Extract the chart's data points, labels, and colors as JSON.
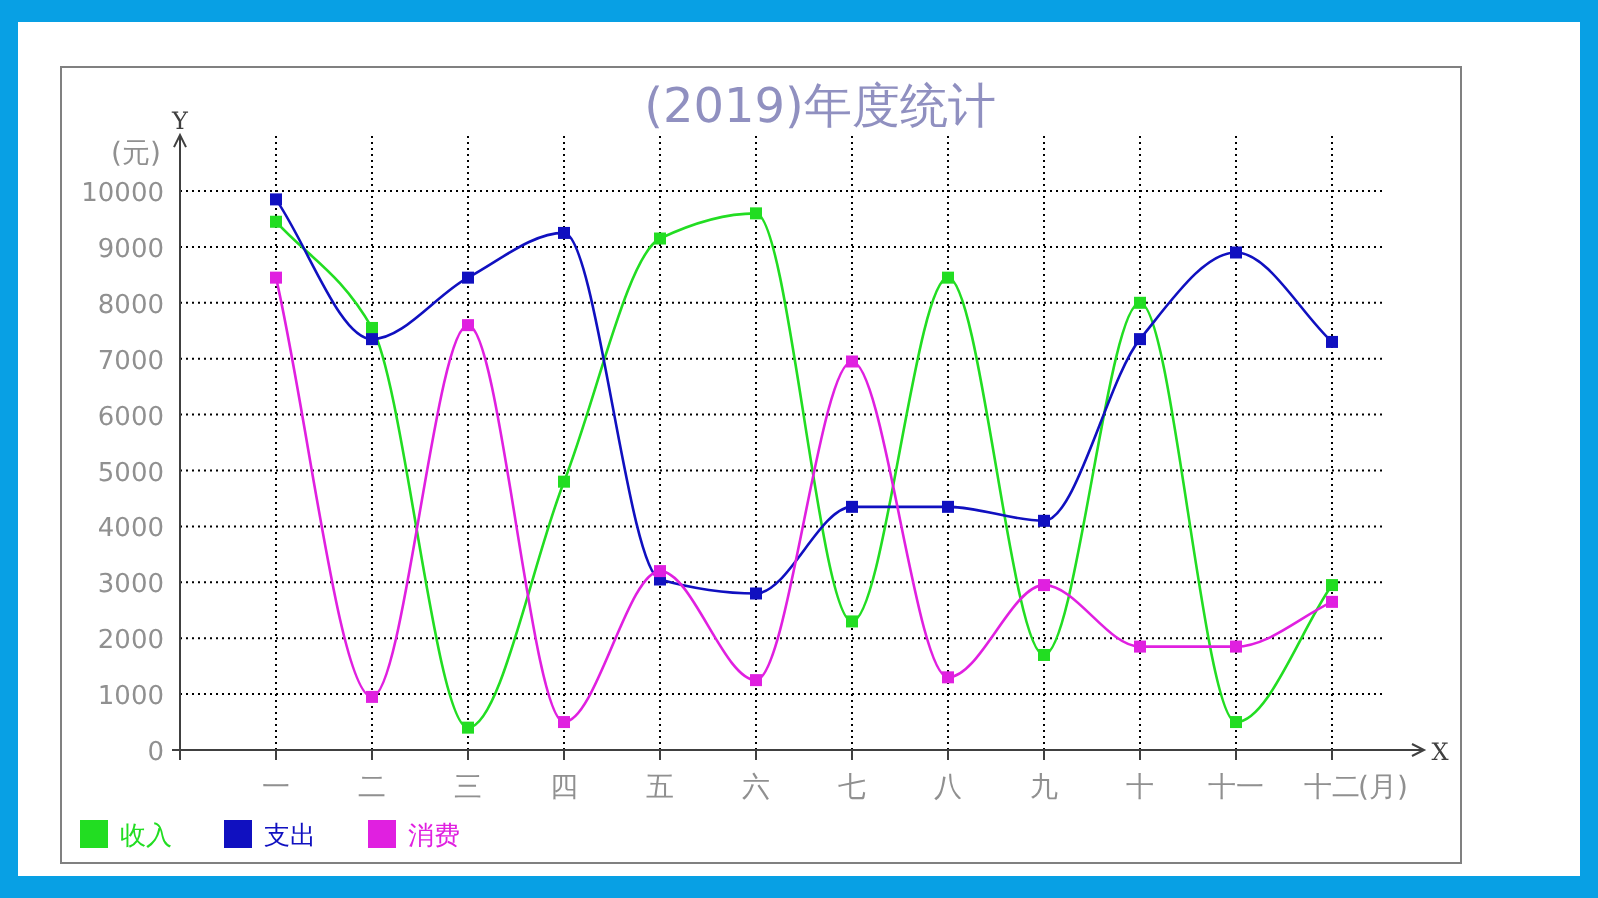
{
  "chart_data": {
    "type": "line",
    "title": "(2019)年度统计",
    "ylabel": "(元)",
    "xlabel": "(月)",
    "annotations": [
      "Y",
      "X"
    ],
    "categories": [
      "一",
      "二",
      "三",
      "四",
      "五",
      "六",
      "七",
      "八",
      "九",
      "十",
      "十一",
      "十二"
    ],
    "series": [
      {
        "name": "收入",
        "color": "#22dd22",
        "values": [
          9450,
          7550,
          400,
          4800,
          9150,
          9600,
          2300,
          8450,
          1700,
          8000,
          500,
          2950
        ]
      },
      {
        "name": "支出",
        "color": "#1010c0",
        "values": [
          9850,
          7350,
          8450,
          9250,
          3050,
          2800,
          4350,
          4350,
          4100,
          7350,
          8900,
          7300
        ]
      },
      {
        "name": "消费",
        "color": "#e020e0",
        "values": [
          8450,
          950,
          7600,
          500,
          3200,
          1250,
          6950,
          1300,
          2950,
          1850,
          1850,
          2650
        ]
      }
    ],
    "ylim": [
      0,
      11000
    ],
    "yticks": [
      0,
      1000,
      2000,
      3000,
      4000,
      5000,
      6000,
      7000,
      8000,
      9000,
      10000
    ],
    "grid": true,
    "legend": "bottom left",
    "marker": "square",
    "line_style": "solid"
  }
}
